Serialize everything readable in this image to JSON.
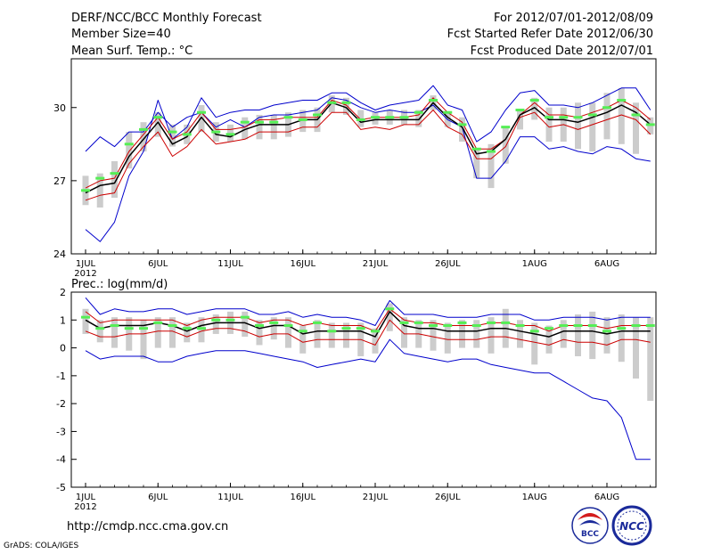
{
  "header": {
    "title": "DERF/NCC/BCC Monthly Forecast",
    "member_size": "Member Size=40",
    "variable": "Mean Surf. Temp.: °C",
    "forecast_period": "For 2012/07/01-2012/08/09",
    "fcst_started": "Fcst Started Refer Date 2012/06/30",
    "fcst_produced": "Fcst Produced Date 2012/07/01"
  },
  "footer": {
    "url": "http://cmdp.ncc.cma.gov.cn",
    "grads_credit": "GrADS: COLA/IGES",
    "logo_left_text": "BCC",
    "logo_right_text": "NCC"
  },
  "colors": {
    "envelope": "#0000cc",
    "spread": "#cc0000",
    "mean": "#000000",
    "median_bar": "#55ee55",
    "box": "#cccccc",
    "background": "#ffffff"
  },
  "chart_data": [
    {
      "type": "line",
      "title": "Mean Surf. Temp.: °C",
      "x": [
        "1JUL",
        "2JUL",
        "3JUL",
        "4JUL",
        "5JUL",
        "6JUL",
        "7JUL",
        "8JUL",
        "9JUL",
        "10JUL",
        "11JUL",
        "12JUL",
        "13JUL",
        "14JUL",
        "15JUL",
        "16JUL",
        "17JUL",
        "18JUL",
        "19JUL",
        "20JUL",
        "21JUL",
        "22JUL",
        "23JUL",
        "24JUL",
        "25JUL",
        "26JUL",
        "27JUL",
        "28JUL",
        "29JUL",
        "30JUL",
        "31JUL",
        "1AUG",
        "2AUG",
        "3AUG",
        "4AUG",
        "5AUG",
        "6AUG",
        "7AUG",
        "8AUG",
        "9AUG"
      ],
      "xticks": [
        "1JUL",
        "6JUL",
        "11JUL",
        "16JUL",
        "21JUL",
        "26JUL",
        "1AUG",
        "6AUG"
      ],
      "xtick_year": "2012",
      "ylim": [
        24,
        32
      ],
      "yticks": [
        24,
        27,
        30
      ],
      "series": [
        {
          "name": "max",
          "values": [
            25.0,
            24.5,
            25.3,
            27.2,
            28.2,
            30.3,
            28.7,
            29.2,
            30.4,
            29.6,
            29.8,
            29.9,
            29.9,
            30.1,
            30.2,
            30.3,
            30.3,
            30.6,
            30.6,
            30.2,
            29.9,
            30.1,
            30.2,
            30.3,
            30.9,
            30.1,
            29.9,
            28.6,
            29.0,
            29.9,
            30.6,
            30.7,
            30.1,
            30.1,
            30.0,
            30.2,
            30.5,
            30.8,
            30.8,
            29.9
          ]
        },
        {
          "name": "min",
          "values": [
            28.2,
            28.8,
            28.4,
            29.0,
            29.0,
            29.8,
            29.2,
            29.6,
            29.8,
            29.2,
            29.5,
            29.2,
            29.6,
            29.7,
            29.7,
            29.8,
            29.9,
            30.4,
            30.3,
            30.0,
            29.8,
            29.9,
            29.8,
            29.8,
            30.1,
            29.5,
            29.2,
            27.1,
            27.1,
            27.8,
            28.8,
            28.8,
            28.3,
            28.4,
            28.2,
            28.1,
            28.4,
            28.3,
            27.9,
            27.8
          ]
        },
        {
          "name": "upper",
          "values": [
            26.7,
            27.0,
            27.1,
            28.2,
            28.9,
            29.6,
            28.7,
            29.0,
            29.8,
            29.1,
            29.1,
            29.2,
            29.5,
            29.5,
            29.6,
            29.6,
            29.6,
            30.3,
            30.1,
            29.5,
            29.6,
            29.6,
            29.6,
            29.7,
            30.4,
            29.8,
            29.4,
            28.3,
            28.3,
            28.7,
            29.7,
            30.2,
            29.7,
            29.7,
            29.6,
            29.8,
            30.0,
            30.3,
            30.0,
            29.5
          ]
        },
        {
          "name": "lower",
          "values": [
            26.2,
            26.4,
            26.5,
            27.7,
            28.4,
            29.0,
            28.0,
            28.4,
            29.1,
            28.5,
            28.6,
            28.7,
            29.0,
            29.0,
            29.0,
            29.2,
            29.2,
            29.8,
            29.8,
            29.1,
            29.2,
            29.1,
            29.3,
            29.3,
            29.9,
            29.2,
            28.9,
            27.9,
            27.9,
            28.4,
            29.6,
            29.8,
            29.2,
            29.3,
            29.1,
            29.3,
            29.5,
            29.7,
            29.5,
            28.9
          ]
        },
        {
          "name": "mean",
          "values": [
            26.5,
            26.8,
            26.9,
            28.0,
            28.7,
            29.4,
            28.5,
            28.8,
            29.6,
            28.9,
            28.8,
            29.1,
            29.3,
            29.3,
            29.3,
            29.5,
            29.5,
            30.2,
            30.0,
            29.4,
            29.5,
            29.5,
            29.5,
            29.5,
            30.2,
            29.6,
            29.2,
            28.1,
            28.2,
            28.7,
            29.7,
            30.0,
            29.5,
            29.5,
            29.4,
            29.6,
            29.8,
            30.1,
            29.8,
            29.3
          ]
        }
      ],
      "median": [
        26.6,
        27.1,
        27.3,
        28.5,
        29.1,
        29.6,
        29.0,
        28.9,
        29.8,
        29.0,
        28.9,
        29.4,
        29.4,
        29.4,
        29.6,
        29.5,
        29.7,
        30.2,
        30.2,
        29.5,
        29.6,
        29.6,
        29.6,
        29.8,
        30.3,
        29.8,
        29.3,
        28.3,
        28.2,
        29.2,
        29.9,
        30.3,
        29.6,
        29.6,
        29.6,
        29.7,
        30.0,
        30.3,
        29.7,
        29.3
      ],
      "box_low": [
        26.0,
        25.9,
        26.3,
        27.5,
        28.2,
        28.8,
        28.4,
        28.5,
        29.0,
        28.6,
        28.6,
        28.7,
        28.7,
        28.7,
        28.8,
        29.0,
        29.0,
        29.8,
        29.7,
        29.2,
        29.3,
        29.3,
        29.3,
        29.2,
        29.9,
        29.2,
        28.6,
        27.1,
        26.7,
        27.7,
        29.1,
        29.5,
        28.6,
        28.6,
        28.3,
        28.2,
        28.7,
        28.5,
        28.1,
        28.9
      ],
      "box_high": [
        27.2,
        27.3,
        27.8,
        29.0,
        29.4,
        29.8,
        29.3,
        29.3,
        30.1,
        29.4,
        29.3,
        29.6,
        29.7,
        29.7,
        29.8,
        29.9,
        30.0,
        30.5,
        30.4,
        29.9,
        29.8,
        29.9,
        29.9,
        29.9,
        30.5,
        29.8,
        29.6,
        28.3,
        28.5,
        29.2,
        29.9,
        30.4,
        30.0,
        30.0,
        30.2,
        30.2,
        30.6,
        30.8,
        30.2,
        29.6
      ]
    },
    {
      "type": "line",
      "title": "Prec.: log(mm/d)",
      "x": [
        "1JUL",
        "2JUL",
        "3JUL",
        "4JUL",
        "5JUL",
        "6JUL",
        "7JUL",
        "8JUL",
        "9JUL",
        "10JUL",
        "11JUL",
        "12JUL",
        "13JUL",
        "14JUL",
        "15JUL",
        "16JUL",
        "17JUL",
        "18JUL",
        "19JUL",
        "20JUL",
        "21JUL",
        "22JUL",
        "23JUL",
        "24JUL",
        "25JUL",
        "26JUL",
        "27JUL",
        "28JUL",
        "29JUL",
        "30JUL",
        "31JUL",
        "1AUG",
        "2AUG",
        "3AUG",
        "4AUG",
        "5AUG",
        "6AUG",
        "7AUG",
        "8AUG",
        "9AUG"
      ],
      "xticks": [
        "1JUL",
        "6JUL",
        "11JUL",
        "16JUL",
        "21JUL",
        "26JUL",
        "1AUG",
        "6AUG"
      ],
      "xtick_year": "2012",
      "ylim": [
        -5,
        2
      ],
      "yticks": [
        -5,
        -4,
        -3,
        -2,
        -1,
        0,
        1,
        2
      ],
      "series": [
        {
          "name": "max",
          "values": [
            1.8,
            1.2,
            1.4,
            1.3,
            1.3,
            1.4,
            1.4,
            1.2,
            1.3,
            1.4,
            1.4,
            1.4,
            1.2,
            1.2,
            1.3,
            1.1,
            1.2,
            1.1,
            1.1,
            1.0,
            0.8,
            1.7,
            1.2,
            1.2,
            1.2,
            1.1,
            1.1,
            1.1,
            1.2,
            1.2,
            1.2,
            1.0,
            1.0,
            1.1,
            1.1,
            1.1,
            1.0,
            1.1,
            1.1,
            1.1
          ]
        },
        {
          "name": "min",
          "values": [
            -0.1,
            -0.4,
            -0.3,
            -0.3,
            -0.3,
            -0.5,
            -0.5,
            -0.3,
            -0.2,
            -0.1,
            -0.1,
            -0.1,
            -0.2,
            -0.3,
            -0.4,
            -0.5,
            -0.7,
            -0.6,
            -0.5,
            -0.4,
            -0.5,
            0.3,
            -0.2,
            -0.3,
            -0.4,
            -0.5,
            -0.4,
            -0.4,
            -0.6,
            -0.7,
            -0.8,
            -0.9,
            -0.9,
            -1.2,
            -1.5,
            -1.8,
            -1.9,
            -2.5,
            -4.0,
            -4.0
          ]
        },
        {
          "name": "upper",
          "values": [
            1.3,
            0.9,
            1.0,
            1.0,
            1.0,
            1.0,
            1.0,
            0.8,
            1.0,
            1.1,
            1.1,
            1.1,
            0.9,
            1.0,
            1.0,
            0.8,
            0.9,
            0.8,
            0.8,
            0.8,
            0.6,
            1.4,
            1.0,
            0.9,
            0.9,
            0.8,
            0.8,
            0.8,
            0.9,
            0.9,
            0.8,
            0.8,
            0.6,
            0.8,
            0.8,
            0.8,
            0.7,
            0.8,
            0.8,
            0.8
          ]
        },
        {
          "name": "lower",
          "values": [
            0.6,
            0.4,
            0.4,
            0.5,
            0.5,
            0.6,
            0.6,
            0.4,
            0.6,
            0.7,
            0.7,
            0.6,
            0.4,
            0.5,
            0.5,
            0.2,
            0.3,
            0.3,
            0.3,
            0.3,
            0.1,
            1.0,
            0.5,
            0.5,
            0.4,
            0.3,
            0.3,
            0.3,
            0.4,
            0.4,
            0.3,
            0.2,
            0.1,
            0.3,
            0.2,
            0.2,
            0.1,
            0.3,
            0.3,
            0.2
          ]
        },
        {
          "name": "mean",
          "values": [
            1.0,
            0.7,
            0.8,
            0.8,
            0.8,
            0.9,
            0.8,
            0.6,
            0.8,
            0.9,
            0.9,
            0.9,
            0.7,
            0.8,
            0.8,
            0.5,
            0.6,
            0.6,
            0.6,
            0.6,
            0.4,
            1.3,
            0.8,
            0.7,
            0.7,
            0.6,
            0.6,
            0.6,
            0.7,
            0.7,
            0.6,
            0.5,
            0.4,
            0.6,
            0.6,
            0.6,
            0.5,
            0.6,
            0.6,
            0.6
          ]
        }
      ],
      "median": [
        1.1,
        0.7,
        0.8,
        0.7,
        0.7,
        0.9,
        0.8,
        0.7,
        0.7,
        1.0,
        1.0,
        1.1,
        0.8,
        0.9,
        0.8,
        0.6,
        0.9,
        0.6,
        0.7,
        0.7,
        0.6,
        1.4,
        0.9,
        0.9,
        0.8,
        0.8,
        0.9,
        0.8,
        0.9,
        0.9,
        0.8,
        0.6,
        0.7,
        0.8,
        0.8,
        0.8,
        0.6,
        0.7,
        0.8,
        0.8
      ],
      "box_low": [
        0.5,
        0.2,
        0.0,
        -0.1,
        -0.4,
        0.0,
        0.0,
        0.2,
        0.2,
        0.5,
        0.5,
        0.4,
        0.1,
        0.3,
        0.0,
        -0.2,
        0.0,
        0.0,
        0.0,
        -0.3,
        -0.2,
        0.6,
        0.0,
        0.0,
        -0.1,
        -0.2,
        0.0,
        0.0,
        -0.2,
        0.0,
        0.0,
        -0.6,
        -0.2,
        0.0,
        -0.3,
        -0.4,
        -0.2,
        -0.5,
        -1.1,
        -1.9
      ],
      "box_high": [
        1.4,
        1.0,
        1.1,
        1.1,
        1.0,
        1.1,
        1.1,
        0.9,
        1.1,
        1.2,
        1.3,
        1.3,
        1.0,
        1.1,
        1.1,
        0.8,
        1.0,
        0.9,
        0.9,
        0.9,
        0.7,
        1.6,
        1.1,
        1.0,
        1.0,
        0.9,
        1.0,
        1.0,
        1.1,
        1.4,
        1.0,
        0.9,
        0.8,
        1.0,
        1.2,
        1.3,
        1.1,
        1.2,
        1.1,
        1.1
      ]
    }
  ]
}
